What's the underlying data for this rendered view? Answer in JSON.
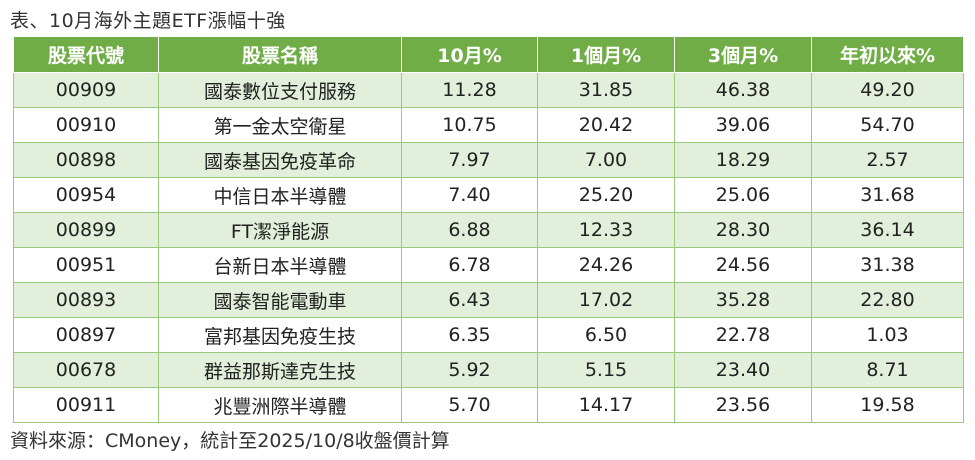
{
  "title": "表、10月海外主題ETF漲幅十強",
  "headers": [
    "股票代號",
    "股票名稱",
    "10月%",
    "1個月%",
    "3個月%",
    "年初以來%"
  ],
  "rows": [
    [
      "00909",
      "國泰數位支付服務",
      "11.28",
      "31.85",
      "46.38",
      "49.20"
    ],
    [
      "00910",
      "第一金太空衛星",
      "10.75",
      "20.42",
      "39.06",
      "54.70"
    ],
    [
      "00898",
      "國泰基因免疫革命",
      "7.97",
      "7.00",
      "18.29",
      "2.57"
    ],
    [
      "00954",
      "中信日本半導體",
      "7.40",
      "25.20",
      "25.06",
      "31.68"
    ],
    [
      "00899",
      "FT潔淨能源",
      "6.88",
      "12.33",
      "28.30",
      "36.14"
    ],
    [
      "00951",
      "台新日本半導體",
      "6.78",
      "24.26",
      "24.56",
      "31.38"
    ],
    [
      "00893",
      "國泰智能電動車",
      "6.43",
      "17.02",
      "35.28",
      "22.80"
    ],
    [
      "00897",
      "富邦基因免疫生技",
      "6.35",
      "6.50",
      "22.78",
      "1.03"
    ],
    [
      "00678",
      "群益那斯達克生技",
      "5.92",
      "5.15",
      "23.40",
      "8.71"
    ],
    [
      "00911",
      "兆豐洲際半導體",
      "5.70",
      "14.17",
      "23.56",
      "19.58"
    ]
  ],
  "source": "資料來源：CMoney，統計至2025/10/8收盤價計算",
  "colors": {
    "header": "#70ad47",
    "stripe": "#e2efda",
    "border": "#9bc97a"
  }
}
